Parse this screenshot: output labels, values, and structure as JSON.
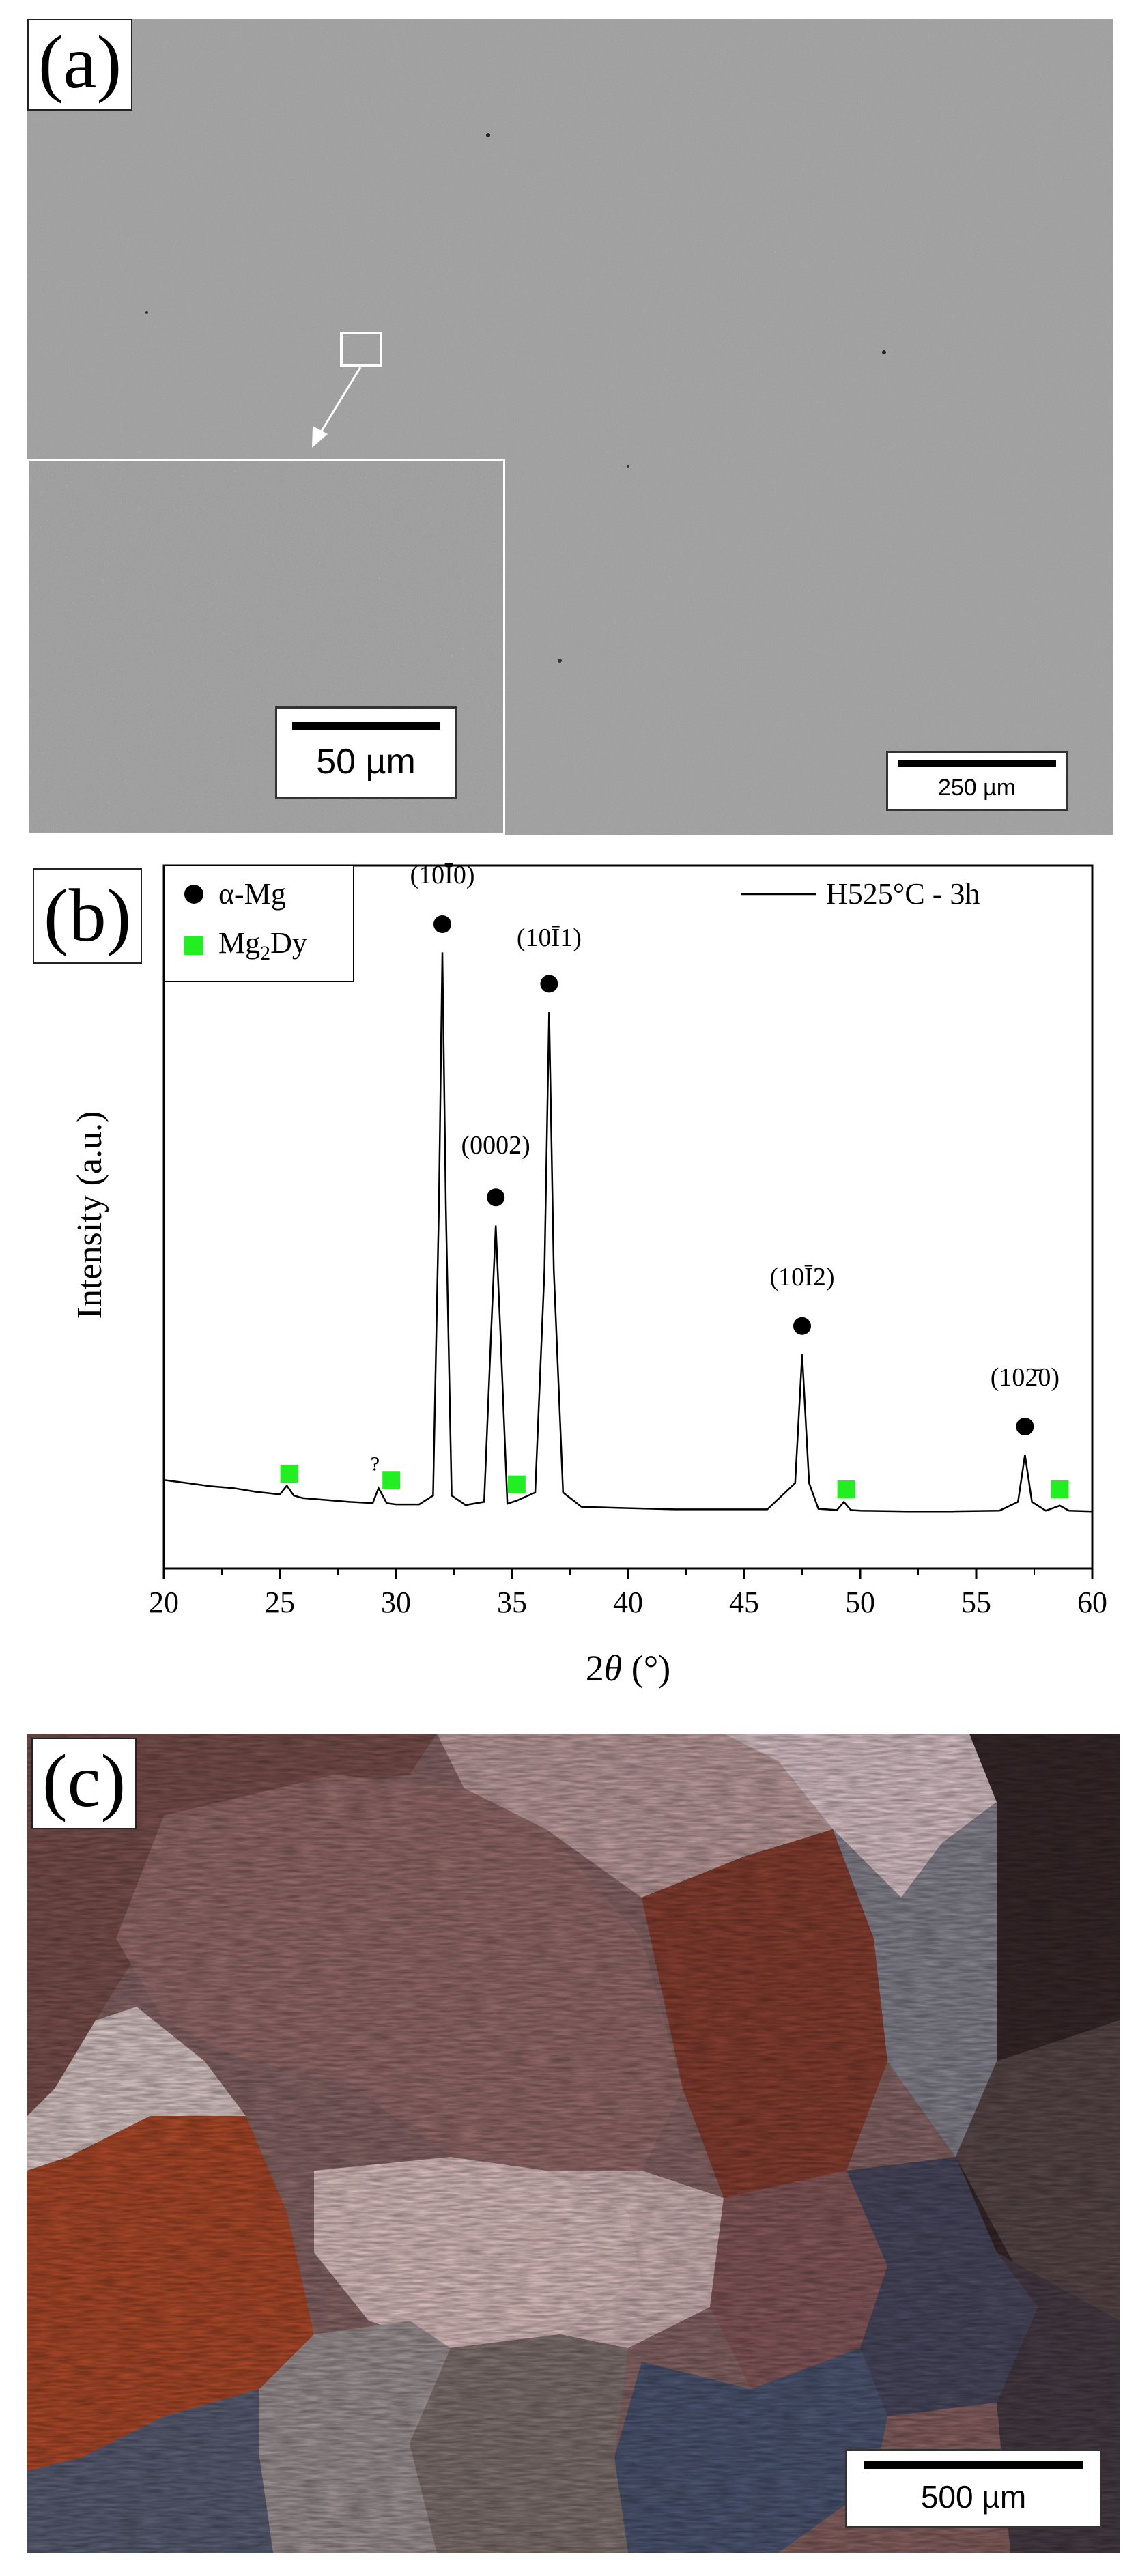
{
  "figure": {
    "panel_a": {
      "label": "(a)",
      "inset_scale": "50 µm",
      "main_scale": "250 µm"
    },
    "panel_b": {
      "label": "(b)",
      "legend_alpha": "α-Mg",
      "legend_mg2dy": "Mg2Dy",
      "legend_line": "H525°C - 3h",
      "colors": {
        "alpha": "#000000",
        "mg2dy": "#22ee22",
        "line": "#000000"
      }
    },
    "panel_c": {
      "label": "(c)",
      "scale": "500 µm"
    }
  },
  "chart_data": {
    "type": "line",
    "xlabel": "2θ (°)",
    "ylabel": "Intensity (a.u.)",
    "xlim": [
      20,
      60
    ],
    "ylim": [
      0,
      100
    ],
    "x_ticks": [
      20,
      25,
      30,
      35,
      40,
      45,
      50,
      55,
      60
    ],
    "series": [
      {
        "name": "H525°C - 3h",
        "x": [
          20,
          21,
          22,
          23,
          24,
          25,
          25.3,
          25.6,
          26,
          27,
          28,
          29,
          29.25,
          29.6,
          30,
          31,
          31.6,
          31.85,
          32.0,
          32.15,
          32.4,
          33,
          33.8,
          34.1,
          34.3,
          34.5,
          34.8,
          35.2,
          36.0,
          36.4,
          36.6,
          36.8,
          37.2,
          38,
          40,
          42,
          44,
          46,
          47.2,
          47.5,
          47.8,
          48.2,
          49,
          49.3,
          49.6,
          50,
          52,
          54,
          56,
          56.8,
          57.1,
          57.4,
          58,
          58.6,
          59,
          60
        ],
        "y": [
          6.5,
          6.0,
          5.5,
          5.2,
          4.6,
          4.2,
          5.6,
          4.0,
          3.6,
          3.3,
          3.0,
          2.8,
          5.2,
          2.8,
          2.6,
          2.6,
          4.0,
          50.0,
          90.5,
          50.0,
          4.0,
          2.5,
          3.0,
          30.0,
          47.0,
          30.0,
          2.7,
          3.2,
          4.5,
          40.0,
          81.0,
          40.0,
          4.5,
          2.2,
          2.0,
          1.8,
          1.8,
          1.8,
          6.0,
          26.5,
          6.0,
          1.9,
          1.7,
          3.0,
          1.7,
          1.6,
          1.5,
          1.5,
          1.6,
          3.0,
          10.5,
          3.0,
          1.6,
          2.4,
          1.6,
          1.5
        ]
      }
    ],
    "alpha_mg_peaks": [
      {
        "x": 32.0,
        "marker_y": 95.0,
        "label": "(10Ī0)",
        "label_y": 101.5
      },
      {
        "x": 34.3,
        "marker_y": 51.5,
        "label": "(0002)",
        "label_y": 58.5
      },
      {
        "x": 36.6,
        "marker_y": 85.5,
        "label": "(10Ī1)",
        "label_y": 91.5
      },
      {
        "x": 47.5,
        "marker_y": 31.0,
        "label": "(10Ī2)",
        "label_y": 37.5
      },
      {
        "x": 57.1,
        "marker_y": 15.0,
        "label": "(102̄0)",
        "label_y": 21.5
      }
    ],
    "mg2dy_peaks": [
      {
        "x": 25.4,
        "y": 7.5
      },
      {
        "x": 29.8,
        "y": 6.5
      },
      {
        "x": 35.2,
        "y": 5.8
      },
      {
        "x": 49.4,
        "y": 5.0
      },
      {
        "x": 58.6,
        "y": 5.0
      }
    ],
    "annotation": {
      "text": "?",
      "x": 29.1,
      "y": 6.7
    }
  }
}
